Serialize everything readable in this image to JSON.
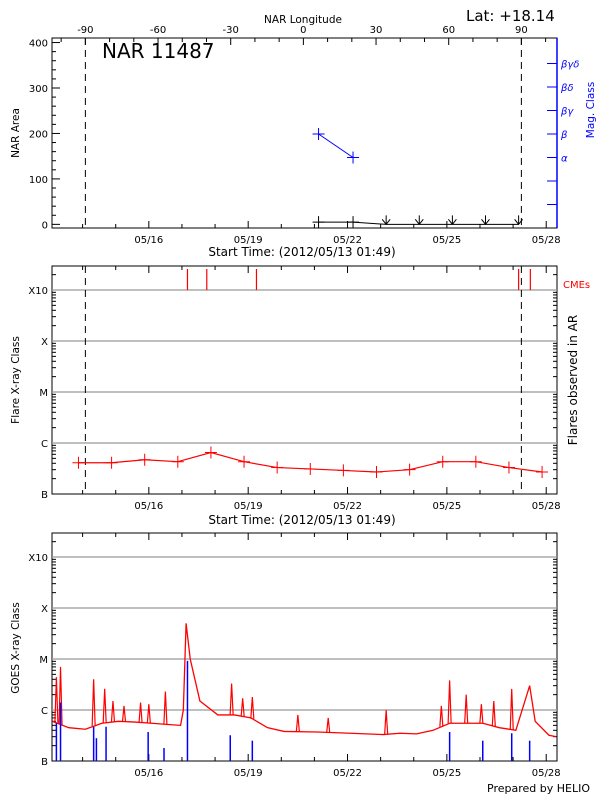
{
  "header": {
    "lat_label": "Lat: +18.14",
    "prepared_by": "Prepared by HELIO"
  },
  "colors": {
    "area": "#000000",
    "mag_class": "#0000ff",
    "flares": "#ff0000",
    "cme": "#ff0000",
    "goes_long": "#ff0000",
    "goes_short": "#0000ff",
    "grid": "#999999"
  },
  "chart_data": [
    {
      "type": "line",
      "title": "NAR 11487",
      "top_axis_label": "NAR Longitude",
      "top_ticks": [
        -90,
        -60,
        -30,
        0,
        30,
        60,
        90
      ],
      "xlabel": "Start Time: (2012/05/13 01:49)",
      "xlim": [
        "05/13 01:49",
        "05/28 07:49"
      ],
      "x_tick_labels": [
        "05/16",
        "05/19",
        "05/22",
        "05/25",
        "05/28"
      ],
      "ylabel": "NAR Area",
      "ylim": [
        -8,
        410
      ],
      "y_ticks": [
        0,
        100,
        200,
        300,
        400
      ],
      "right_axis_label": "Mag. Class",
      "right_tick_labels": [
        "α",
        "β",
        "βγ",
        "βδ",
        "βγδ"
      ],
      "limb_markers": [
        {
          "time": "05/14 02:00",
          "longitude": -90
        },
        {
          "time": "05/27 06:00",
          "longitude": 90
        }
      ],
      "area": {
        "times": [
          "05/21 03:00",
          "05/22 04:00",
          "05/23 04:00",
          "05/24 04:00",
          "05/25 04:00",
          "05/26 04:00",
          "05/27 04:00"
        ],
        "values": [
          5,
          5,
          0,
          0,
          0,
          0,
          0
        ]
      },
      "mag_class": {
        "times": [
          "05/21 03:00",
          "05/22 04:00"
        ],
        "values": [
          "β",
          "α"
        ]
      }
    },
    {
      "type": "line",
      "xlabel": "Start Time: (2012/05/13 01:49)",
      "xlim": [
        "05/13 01:49",
        "05/28 07:49"
      ],
      "x_tick_labels": [
        "05/16",
        "05/19",
        "05/22",
        "05/25",
        "05/28"
      ],
      "ylabel": "Flare X-ray Class",
      "y_scale": "log",
      "ylim": [
        1e-07,
        0.003
      ],
      "y_tick_labels": [
        "B",
        "C",
        "M",
        "X",
        "X10"
      ],
      "grid": true,
      "right_axis_label": "Flares observed in AR",
      "cme_label": "CMEs",
      "cme_times": [
        "05/17 04:00",
        "05/17 18:00",
        "05/19 06:00",
        "05/27 04:00",
        "05/27 12:30"
      ],
      "limb_markers": [
        "05/14 02:00",
        "05/27 06:00"
      ],
      "flares": {
        "times": [
          "05/13 21:00",
          "05/14 21:00",
          "05/15 21:00",
          "05/16 21:00",
          "05/17 21:00",
          "05/18 21:00",
          "05/19 21:00",
          "05/20 21:00",
          "05/21 21:00",
          "05/22 21:00",
          "05/23 21:00",
          "05/24 21:00",
          "05/25 21:00",
          "05/26 21:00",
          "05/27 21:00"
        ],
        "values": [
          4.1e-07,
          4.1e-07,
          4.7e-07,
          4.3e-07,
          6.5e-07,
          4.3e-07,
          3.3e-07,
          3.1e-07,
          2.9e-07,
          2.7e-07,
          3e-07,
          4.3e-07,
          4.3e-07,
          3.3e-07,
          2.7e-07
        ]
      }
    },
    {
      "type": "line",
      "xlim": [
        "05/13 01:49",
        "05/28 07:49"
      ],
      "x_tick_labels": [
        "05/16",
        "05/19",
        "05/22",
        "05/25",
        "05/28"
      ],
      "ylabel": "GOES X-ray Class",
      "y_scale": "log",
      "ylim": [
        1e-07,
        0.003
      ],
      "y_tick_labels": [
        "B",
        "C",
        "M",
        "X",
        "X10"
      ],
      "grid": true,
      "goes_long": {
        "times": [
          "05/13 02:00",
          "05/13 14:00",
          "05/14 02:00",
          "05/14 14:00",
          "05/15 02:00",
          "05/15 14:00",
          "05/16 02:00",
          "05/16 14:00",
          "05/16 23:00",
          "05/17 01:00",
          "05/17 03:00",
          "05/17 06:00",
          "05/17 13:00",
          "05/18 02:00",
          "05/18 14:00",
          "05/19 02:00",
          "05/19 14:00",
          "05/20 02:00",
          "05/21 02:00",
          "05/22 02:00",
          "05/23 02:00",
          "05/23 14:00",
          "05/24 02:00",
          "05/24 14:00",
          "05/25 02:00",
          "05/26 02:00",
          "05/26 14:00",
          "05/27 02:00",
          "05/27 12:00",
          "05/27 16:00",
          "05/28 02:00",
          "05/28 07:00"
        ],
        "values": [
          6e-07,
          4.5e-07,
          4.2e-07,
          5.5e-07,
          6e-07,
          5.8e-07,
          5.5e-07,
          5.2e-07,
          5e-07,
          1e-06,
          5e-05,
          1e-05,
          1.5e-06,
          8e-07,
          8e-07,
          7e-07,
          4.5e-07,
          3.8e-07,
          3.7e-07,
          3.5e-07,
          3.3e-07,
          3.5e-07,
          3.4e-07,
          4e-07,
          5.5e-07,
          5.5e-07,
          4.5e-07,
          4e-07,
          3e-06,
          6e-07,
          3.2e-07,
          3e-07
        ],
        "peaks": {
          "times": [
            "05/13 05:00",
            "05/13 08:00",
            "05/14 08:00",
            "05/14 16:00",
            "05/14 22:00",
            "05/15 06:00",
            "05/15 18:00",
            "05/16 00:00",
            "05/16 12:00",
            "05/18 12:00",
            "05/18 20:00",
            "05/19 03:00",
            "05/20 12:00",
            "05/21 10:00",
            "05/23 04:00",
            "05/24 20:00",
            "05/25 02:00",
            "05/25 14:00",
            "05/26 01:00",
            "05/26 10:00",
            "05/26 23:00"
          ],
          "values": [
            4.4e-06,
            7e-06,
            4e-06,
            2.6e-06,
            1.5e-06,
            1.2e-06,
            1.4e-06,
            1.3e-06,
            2.3e-06,
            3.3e-06,
            1.7e-06,
            1.8e-06,
            8e-07,
            7e-07,
            1e-06,
            1.2e-06,
            3.8e-06,
            2e-06,
            1.3e-06,
            1.5e-06,
            2.6e-06
          ]
        }
      },
      "goes_short": {
        "times": [
          "05/13 05:00",
          "05/13 08:00",
          "05/14 08:00",
          "05/14 10:00",
          "05/14 17:00",
          "05/15 23:30",
          "05/16 11:00",
          "05/17 04:00",
          "05/18 11:00",
          "05/19 03:00",
          "05/25 02:00",
          "05/26 02:00",
          "05/26 23:00",
          "05/27 12:00"
        ],
        "values": [
          5.6e-07,
          1.4e-06,
          4.7e-07,
          2.8e-07,
          4.7e-07,
          3.7e-07,
          1.8e-07,
          9.2e-06,
          3.2e-07,
          2.5e-07,
          3.7e-07,
          2.5e-07,
          3.5e-07,
          2.5e-07
        ]
      }
    }
  ]
}
